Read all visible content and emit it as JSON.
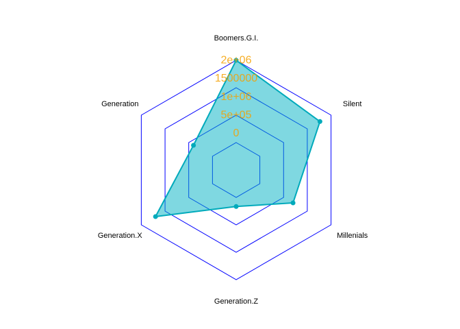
{
  "chart_data": {
    "type": "radar",
    "axes": [
      "Boomers.G.I.",
      "Silent",
      "Millenials",
      "Generation.Z",
      "Generation.X",
      "Generation"
    ],
    "series": [
      {
        "values": [
          2000000,
          1650000,
          800000,
          0,
          1550000,
          350000
        ]
      }
    ],
    "rmin": -1000000,
    "rmax": 2000000,
    "grid_levels": [
      -1000000,
      -250000,
      500000,
      1250000,
      2000000
    ],
    "tick_values": [
      0,
      500000,
      1000000,
      1500000,
      2000000
    ],
    "tick_labels": [
      "0",
      "5e+05",
      "1e+06",
      "1500000",
      "2e+06"
    ],
    "colors": {
      "grid": "#0000ff",
      "fill": "#00b2c3",
      "line": "#00aabb",
      "point": "#00aabb",
      "tick_label": "#f5a000",
      "axis_label": "#000000"
    }
  }
}
